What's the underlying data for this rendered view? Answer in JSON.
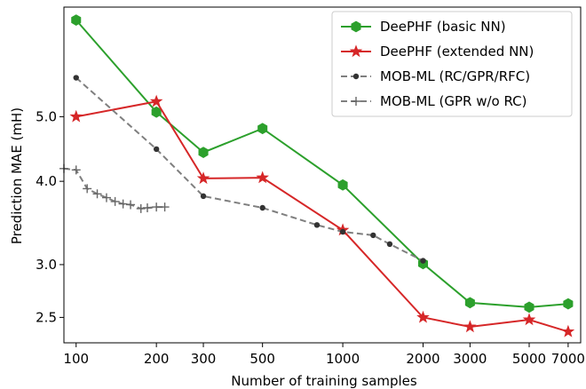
{
  "chart_data": {
    "type": "line",
    "xlabel": "Number of training samples",
    "ylabel": "Prediction MAE (mH)",
    "x_scale": "log",
    "y_scale": "log",
    "xlim": [
      90,
      7800
    ],
    "ylim": [
      2.29,
      7.3
    ],
    "x_ticks": [
      {
        "value": 100,
        "label": "100"
      },
      {
        "value": 200,
        "label": "200"
      },
      {
        "value": 300,
        "label": "300"
      },
      {
        "value": 500,
        "label": "500"
      },
      {
        "value": 1000,
        "label": "1000"
      },
      {
        "value": 2000,
        "label": "2000"
      },
      {
        "value": 3000,
        "label": "3000"
      },
      {
        "value": 5000,
        "label": "5000"
      },
      {
        "value": 7000,
        "label": "7000"
      }
    ],
    "y_ticks": [
      {
        "value": 2.5,
        "label": "2.5"
      },
      {
        "value": 3.0,
        "label": "3.0"
      },
      {
        "value": 4.0,
        "label": "4.0"
      },
      {
        "value": 5.0,
        "label": "5.0"
      }
    ],
    "legend_position": "top-right",
    "grid": false,
    "series": [
      {
        "name": "DeePHF (basic NN)",
        "color": "#2ca02c",
        "marker": "hexagon",
        "line_style": "solid",
        "alpha": 1.0,
        "points": [
          [
            100,
            6.98
          ],
          [
            200,
            5.08
          ],
          [
            300,
            4.42
          ],
          [
            500,
            4.8
          ],
          [
            1000,
            3.95
          ],
          [
            2000,
            3.01
          ],
          [
            3000,
            2.63
          ],
          [
            5000,
            2.59
          ],
          [
            7000,
            2.62
          ]
        ]
      },
      {
        "name": "DeePHF (extended NN)",
        "color": "#d62728",
        "marker": "star",
        "line_style": "solid",
        "alpha": 1.0,
        "points": [
          [
            100,
            5.0
          ],
          [
            200,
            5.27
          ],
          [
            300,
            4.04
          ],
          [
            500,
            4.05
          ],
          [
            1000,
            3.38
          ],
          [
            2000,
            2.5
          ],
          [
            3000,
            2.42
          ],
          [
            5000,
            2.48
          ],
          [
            7000,
            2.38
          ]
        ]
      },
      {
        "name": "MOB-ML (RC/GPR/RFC)",
        "color": "#7f7f7f",
        "marker": "dot",
        "line_style": "dashed",
        "alpha": 1.0,
        "points": [
          [
            100,
            5.72
          ],
          [
            200,
            4.47
          ],
          [
            300,
            3.8
          ],
          [
            500,
            3.65
          ],
          [
            800,
            3.44
          ],
          [
            1000,
            3.36
          ],
          [
            1300,
            3.32
          ],
          [
            1500,
            3.22
          ],
          [
            2000,
            3.04
          ]
        ]
      },
      {
        "name": "MOB-ML (GPR w/o RC)",
        "color": "#555555",
        "marker": "plus",
        "line_style": "dashed",
        "alpha": 0.75,
        "points": [
          [
            90,
            4.18
          ],
          [
            100,
            4.16
          ],
          [
            110,
            3.9
          ],
          [
            120,
            3.83
          ],
          [
            130,
            3.78
          ],
          [
            140,
            3.73
          ],
          [
            150,
            3.7
          ],
          [
            160,
            3.69
          ],
          [
            175,
            3.64
          ],
          [
            185,
            3.65
          ],
          [
            200,
            3.66
          ],
          [
            215,
            3.66
          ]
        ]
      }
    ]
  }
}
